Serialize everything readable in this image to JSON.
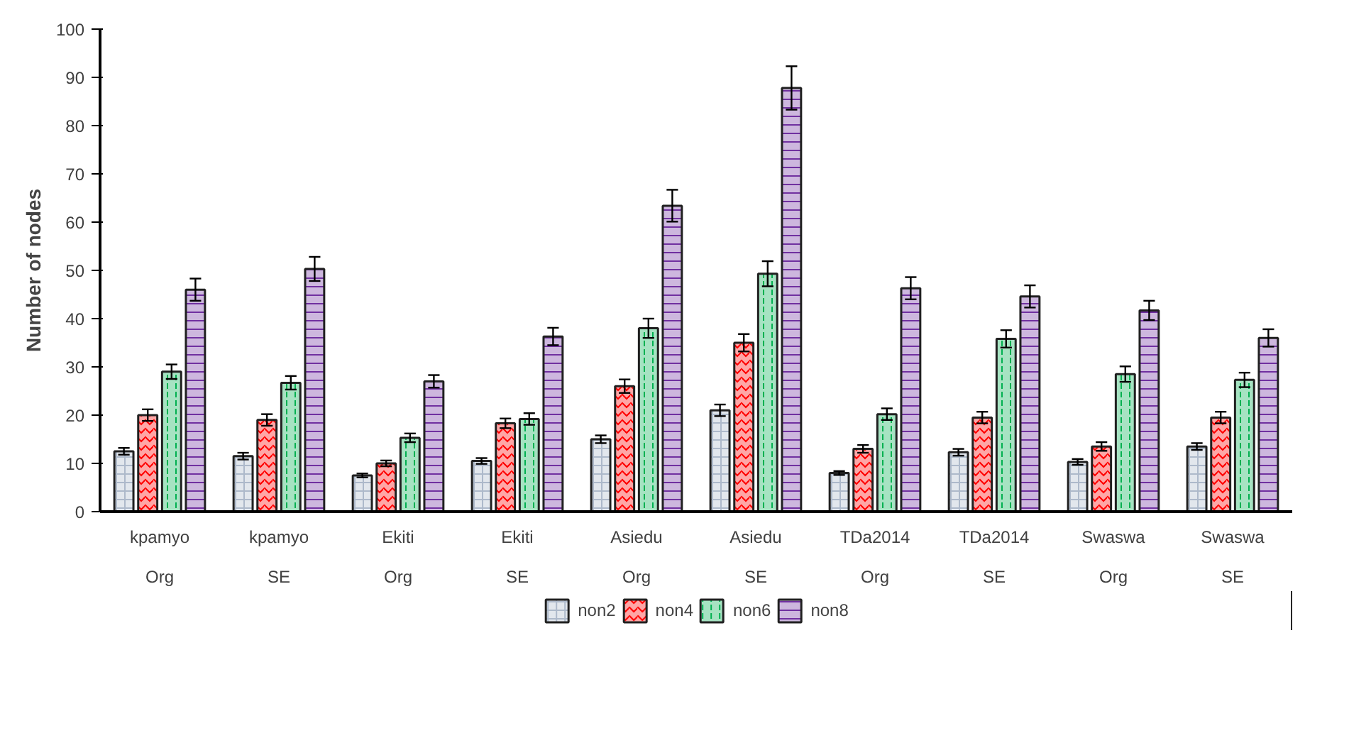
{
  "chart_data": {
    "type": "bar",
    "ylabel": "Number of nodes",
    "categories": [
      "kpamyo\nOrg",
      "kpamyo\nSE",
      "Ekiti\nOrg",
      "Ekiti\nSE",
      "Asiedu\nOrg",
      "Asiedu\nSE",
      "TDa2014\nOrg",
      "TDa2014\nSE",
      "Swaswa\nOrg",
      "Swaswa\nSE"
    ],
    "series": [
      {
        "name": "non2",
        "color": "#adb9ca",
        "values": [
          12.5,
          11.5,
          7.5,
          10.5,
          15,
          21,
          8,
          12.3,
          10.3,
          13.5
        ],
        "errors": [
          0.7,
          0.7,
          0.4,
          0.6,
          0.8,
          1.2,
          0.4,
          0.7,
          0.6,
          0.7
        ]
      },
      {
        "name": "non4",
        "color": "#ff0000",
        "values": [
          20,
          19,
          10,
          18.3,
          26,
          35,
          13,
          19.5,
          13.5,
          19.5
        ],
        "errors": [
          1.2,
          1.2,
          0.6,
          1.0,
          1.4,
          1.8,
          0.8,
          1.2,
          0.9,
          1.2
        ]
      },
      {
        "name": "non6",
        "color": "#00b050",
        "values": [
          29,
          26.7,
          15.3,
          19.2,
          38,
          49.3,
          20.2,
          35.8,
          28.5,
          27.3
        ],
        "errors": [
          1.5,
          1.4,
          0.9,
          1.2,
          2.0,
          2.6,
          1.2,
          1.8,
          1.6,
          1.5
        ]
      },
      {
        "name": "non8",
        "color": "#7030a0",
        "values": [
          46,
          50.3,
          27,
          36.3,
          63.4,
          87.8,
          46.3,
          44.6,
          41.7,
          36
        ],
        "errors": [
          2.3,
          2.5,
          1.3,
          1.8,
          3.3,
          4.5,
          2.3,
          2.3,
          2.0,
          1.8
        ]
      }
    ],
    "ylim": [
      0,
      100
    ],
    "yticks": [
      0,
      10,
      20,
      30,
      40,
      50,
      60,
      70,
      80,
      90,
      100
    ],
    "grid": false,
    "legend": "bottom"
  }
}
